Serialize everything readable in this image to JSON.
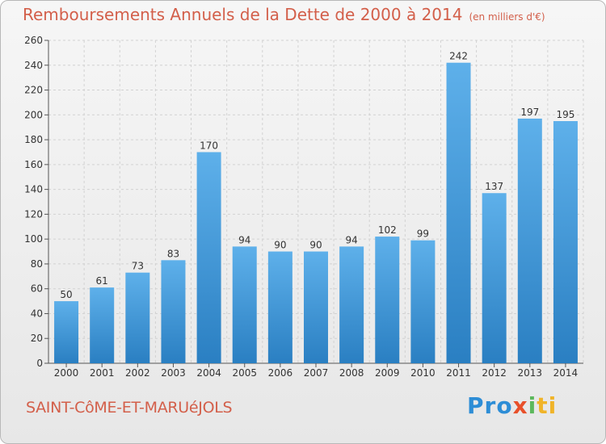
{
  "header": {
    "title": "Remboursements Annuels de la Dette de 2000 à 2014",
    "unit": "(en milliers d'€)"
  },
  "footer": {
    "commune": "SAINT-CôME-ET-MARUéJOLS",
    "logo_parts": [
      "Pro",
      "x",
      "i",
      "ti"
    ]
  },
  "colors": {
    "title": "#d35f4a",
    "bar_top": "#5eb0ea",
    "bar_bottom": "#2a7fc2"
  },
  "chart_data": {
    "type": "bar",
    "title": "Remboursements Annuels de la Dette de 2000 à 2014",
    "xlabel": "",
    "ylabel": "",
    "categories": [
      "2000",
      "2001",
      "2002",
      "2003",
      "2004",
      "2005",
      "2006",
      "2007",
      "2008",
      "2009",
      "2010",
      "2011",
      "2012",
      "2013",
      "2014"
    ],
    "values": [
      50,
      61,
      73,
      83,
      170,
      94,
      90,
      90,
      94,
      102,
      99,
      242,
      137,
      197,
      195
    ],
    "ylim": [
      0,
      260
    ],
    "yticks": [
      0,
      20,
      40,
      60,
      80,
      100,
      120,
      140,
      160,
      180,
      200,
      220,
      240,
      260
    ],
    "grid": true,
    "legend": "none"
  }
}
